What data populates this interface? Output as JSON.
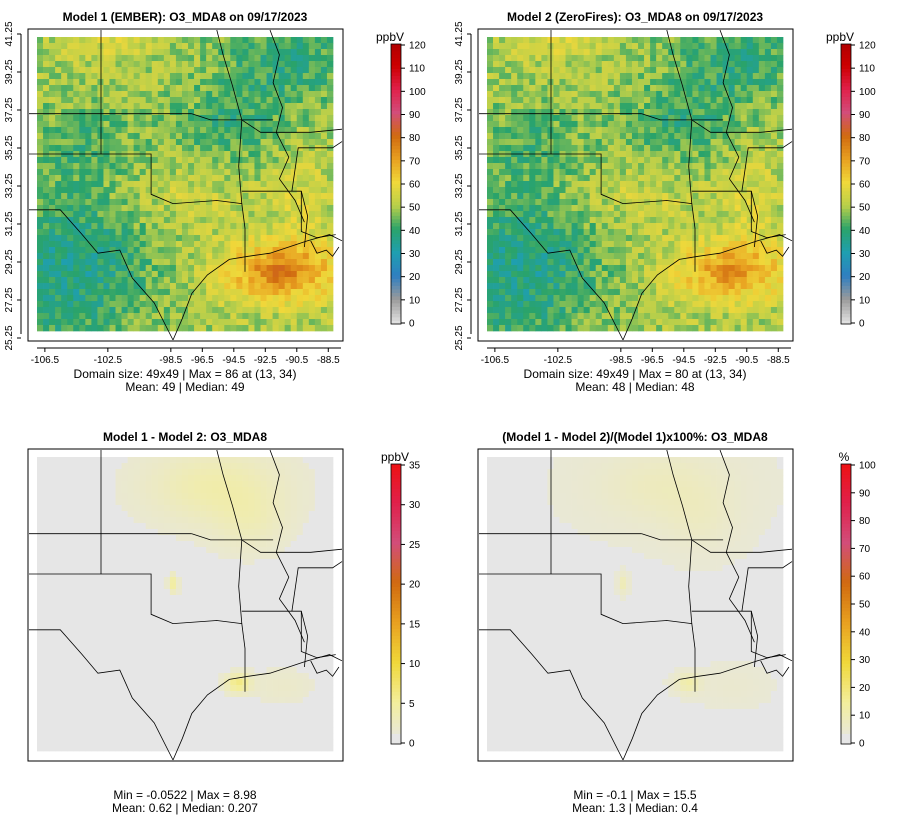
{
  "panels": [
    {
      "id": "p1",
      "title": "Model 1 (EMBER): O3_MDA8 on 09/17/2023",
      "unit": "ppbV",
      "colorbar_ticks": [
        "0",
        "10",
        "20",
        "30",
        "40",
        "50",
        "60",
        "70",
        "80",
        "90",
        "100",
        "110",
        "120"
      ],
      "colorbar_max": 120,
      "stats_line1": "Domain size: 49x49 | Max = 86 at (13, 34)",
      "stats_line2": "Mean: 49 |  Median: 49",
      "show_axes": true,
      "field": "ozone"
    },
    {
      "id": "p2",
      "title": "Model 2 (ZeroFires): O3_MDA8 on 09/17/2023",
      "unit": "ppbV",
      "colorbar_ticks": [
        "0",
        "10",
        "20",
        "30",
        "40",
        "50",
        "60",
        "70",
        "80",
        "90",
        "100",
        "110",
        "120"
      ],
      "colorbar_max": 120,
      "stats_line1": "Domain size: 49x49 | Max = 80 at (13, 34)",
      "stats_line2": "Mean: 48 |  Median: 48",
      "show_axes": true,
      "field": "ozone"
    },
    {
      "id": "p3",
      "title": "Model 1 - Model 2: O3_MDA8",
      "unit": "ppbV",
      "colorbar_ticks": [
        "0",
        "5",
        "10",
        "15",
        "20",
        "25",
        "30",
        "35"
      ],
      "colorbar_max": 35,
      "stats_line1": "Min = -0.0522 | Max = 8.98",
      "stats_line2": "Mean: 0.62 |  Median: 0.207",
      "show_axes": false,
      "field": "diff"
    },
    {
      "id": "p4",
      "title": "(Model 1 - Model 2)/(Model 1)x100%: O3_MDA8",
      "unit": "%",
      "colorbar_ticks": [
        "0",
        "10",
        "20",
        "30",
        "40",
        "50",
        "60",
        "70",
        "80",
        "90",
        "100"
      ],
      "colorbar_max": 100,
      "stats_line1": "Min = -0.1 | Max = 15.5",
      "stats_line2": "Mean: 1.3 |  Median: 0.4",
      "show_axes": false,
      "field": "pct"
    }
  ],
  "axes": {
    "lon_ticks": [
      "-106.5",
      "-102.5",
      "-98.5",
      "-96.5",
      "-94.5",
      "-92.5",
      "-90.5",
      "-88.5"
    ],
    "lat_ticks": [
      "25.25",
      "27.25",
      "29.25",
      "31.25",
      "33.25",
      "35.25",
      "37.25",
      "39.25",
      "41.25"
    ]
  },
  "colors": {
    "ozone_scale": [
      "#e0e0e0",
      "#9a9a9a",
      "#2f7fc1",
      "#1f9fb0",
      "#2aa36a",
      "#b9cf4a",
      "#f0d83a",
      "#e8a020",
      "#d06a10",
      "#d24d7a",
      "#e0204a",
      "#cc0000",
      "#b00000"
    ],
    "diff_scale": [
      "#e6e6e6",
      "#f3ee9c",
      "#f0d83a",
      "#e8a020",
      "#d06a10",
      "#d24d7a",
      "#e0204a",
      "#ee1111"
    ]
  }
}
